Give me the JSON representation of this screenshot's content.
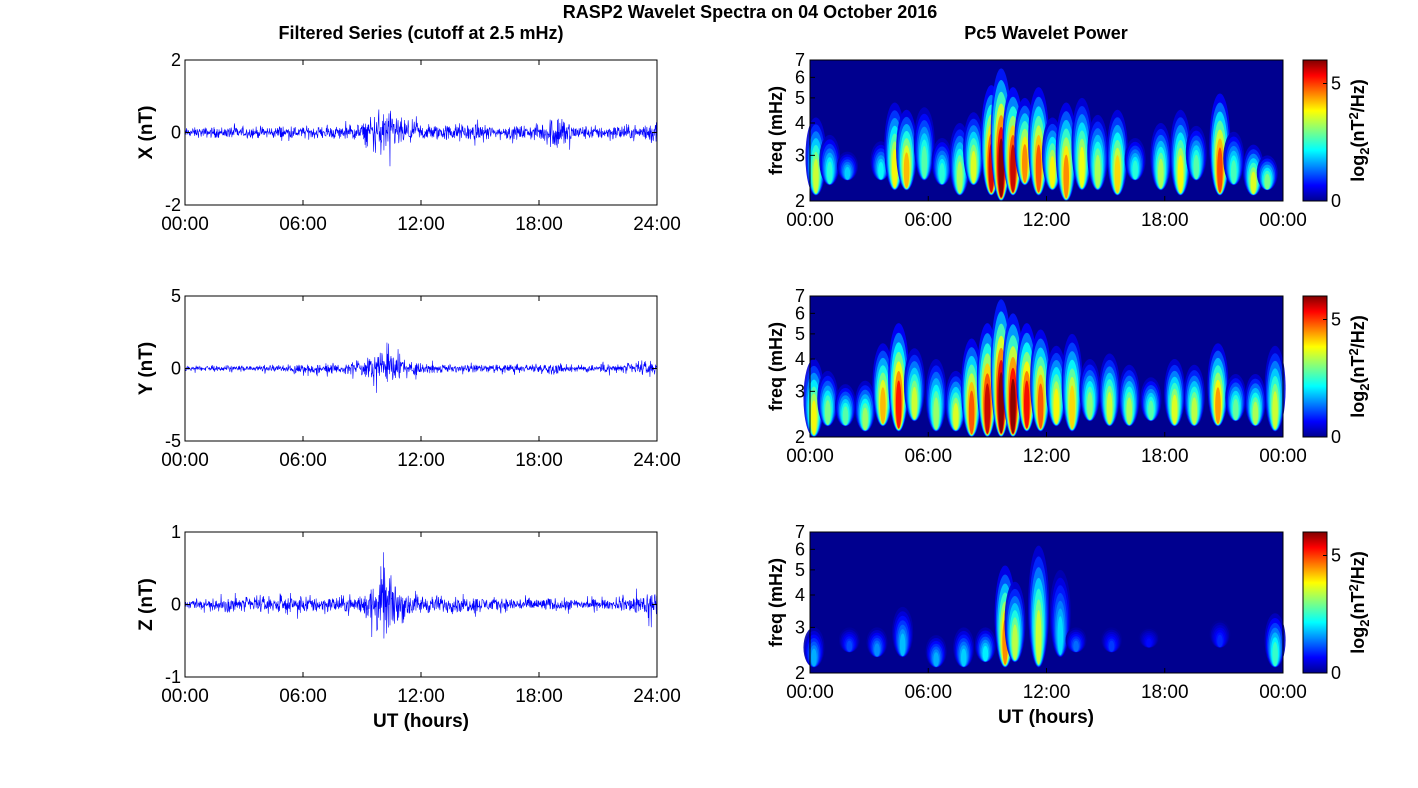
{
  "figure": {
    "title": "RASP2 Wavelet Spectra on 04 October 2016",
    "left_column_title": "Filtered Series (cutoff at 2.5 mHz)",
    "right_column_title": "Pc5 Wavelet Power",
    "x_label": "UT (hours)",
    "left_x_ticks": [
      "00:00",
      "06:00",
      "12:00",
      "18:00",
      "24:00"
    ],
    "right_x_ticks": [
      "00:00",
      "06:00",
      "12:00",
      "18:00",
      "00:00"
    ],
    "freq_label": "freq (mHz)",
    "freq_ticks": [
      "2",
      "3",
      "4",
      "5",
      "6",
      "7"
    ],
    "colorbar_ticks": [
      "0",
      "5"
    ],
    "trace_color": "#0000ff",
    "background_color": "#00008f"
  },
  "chart_data": [
    {
      "type": "line",
      "component": "X",
      "ylabel": "X (nT)",
      "ylim": [
        -2,
        2
      ],
      "y_ticks": [
        "2",
        "0",
        "-2"
      ],
      "xlim": [
        0,
        24
      ],
      "envelope": {
        "hours": [
          0,
          2,
          4,
          5,
          6,
          8,
          9,
          9.5,
          10,
          10.5,
          11,
          12,
          13,
          14,
          15,
          16,
          17,
          18,
          18.5,
          19,
          19.5,
          20,
          21,
          22,
          23,
          24
        ],
        "amplitude_nT": [
          0.2,
          0.25,
          0.25,
          0.3,
          0.25,
          0.3,
          0.4,
          0.8,
          1.1,
          0.9,
          0.6,
          0.4,
          0.35,
          0.4,
          0.35,
          0.3,
          0.3,
          0.35,
          0.6,
          1.0,
          0.5,
          0.3,
          0.3,
          0.35,
          0.3,
          0.6
        ]
      }
    },
    {
      "type": "line",
      "component": "Y",
      "ylabel": "Y (nT)",
      "ylim": [
        -5,
        5
      ],
      "y_ticks": [
        "5",
        "0",
        "-5"
      ],
      "xlim": [
        0,
        24
      ],
      "envelope": {
        "hours": [
          0,
          2,
          4,
          6,
          8,
          9,
          9.5,
          10,
          10.5,
          11,
          12,
          13,
          14,
          16,
          18,
          19,
          20,
          22,
          24
        ],
        "amplitude_nT": [
          0.3,
          0.3,
          0.35,
          0.5,
          0.6,
          0.8,
          1.4,
          2.0,
          1.6,
          1.2,
          0.6,
          0.5,
          0.4,
          0.4,
          0.5,
          0.6,
          0.4,
          0.5,
          0.9
        ]
      }
    },
    {
      "type": "line",
      "component": "Z",
      "ylabel": "Z (nT)",
      "ylim": [
        -1,
        1
      ],
      "y_ticks": [
        "1",
        "0",
        "-1"
      ],
      "xlim": [
        0,
        24
      ],
      "envelope": {
        "hours": [
          0,
          2,
          4,
          6,
          8,
          9,
          9.5,
          10,
          10.5,
          11,
          12,
          14,
          16,
          18,
          20,
          22,
          24
        ],
        "amplitude_nT": [
          0.08,
          0.15,
          0.18,
          0.2,
          0.18,
          0.25,
          0.45,
          0.75,
          0.6,
          0.4,
          0.2,
          0.18,
          0.15,
          0.15,
          0.12,
          0.1,
          0.35
        ]
      }
    },
    {
      "type": "heatmap",
      "component": "X",
      "ylabel": "freq (mHz)",
      "ylim": [
        2,
        7
      ],
      "y_scale": "log",
      "xlim": [
        0,
        24
      ],
      "colorbar_label": "log2(nT^2/Hz)",
      "clim": [
        0,
        6
      ],
      "colormap": "jet",
      "bursts": [
        {
          "t": 0.3,
          "f0": 2.1,
          "ftop": 4.2,
          "p": 3.5
        },
        {
          "t": 1.0,
          "f0": 2.3,
          "ftop": 3.6,
          "p": 2.5
        },
        {
          "t": 1.9,
          "f0": 2.4,
          "ftop": 3.1,
          "p": 2.0
        },
        {
          "t": 3.6,
          "f0": 2.4,
          "ftop": 3.4,
          "p": 2.3
        },
        {
          "t": 4.3,
          "f0": 2.2,
          "ftop": 4.8,
          "p": 3.8
        },
        {
          "t": 4.9,
          "f0": 2.2,
          "ftop": 4.5,
          "p": 4.2
        },
        {
          "t": 5.8,
          "f0": 2.4,
          "ftop": 4.6,
          "p": 2.8
        },
        {
          "t": 6.7,
          "f0": 2.3,
          "ftop": 3.5,
          "p": 2.5
        },
        {
          "t": 7.6,
          "f0": 2.1,
          "ftop": 4.0,
          "p": 3.3
        },
        {
          "t": 8.3,
          "f0": 2.3,
          "ftop": 4.4,
          "p": 3.6
        },
        {
          "t": 9.2,
          "f0": 2.1,
          "ftop": 5.6,
          "p": 5.5
        },
        {
          "t": 9.7,
          "f0": 2.0,
          "ftop": 6.5,
          "p": 6.2
        },
        {
          "t": 10.3,
          "f0": 2.1,
          "ftop": 5.5,
          "p": 5.6
        },
        {
          "t": 10.9,
          "f0": 2.3,
          "ftop": 5.0,
          "p": 4.5
        },
        {
          "t": 11.6,
          "f0": 2.1,
          "ftop": 5.5,
          "p": 4.8
        },
        {
          "t": 12.3,
          "f0": 2.2,
          "ftop": 4.2,
          "p": 3.8
        },
        {
          "t": 13.0,
          "f0": 2.0,
          "ftop": 4.8,
          "p": 4.5
        },
        {
          "t": 13.8,
          "f0": 2.2,
          "ftop": 5.0,
          "p": 3.7
        },
        {
          "t": 14.6,
          "f0": 2.2,
          "ftop": 4.3,
          "p": 3.3
        },
        {
          "t": 15.6,
          "f0": 2.1,
          "ftop": 4.5,
          "p": 4.0
        },
        {
          "t": 16.5,
          "f0": 2.4,
          "ftop": 3.5,
          "p": 2.5
        },
        {
          "t": 17.8,
          "f0": 2.2,
          "ftop": 4.0,
          "p": 3.3
        },
        {
          "t": 18.8,
          "f0": 2.1,
          "ftop": 4.5,
          "p": 3.8
        },
        {
          "t": 19.6,
          "f0": 2.4,
          "ftop": 3.9,
          "p": 2.8
        },
        {
          "t": 20.8,
          "f0": 2.1,
          "ftop": 5.2,
          "p": 4.9
        },
        {
          "t": 21.5,
          "f0": 2.3,
          "ftop": 3.7,
          "p": 2.7
        },
        {
          "t": 22.5,
          "f0": 2.1,
          "ftop": 3.3,
          "p": 3.6
        },
        {
          "t": 23.2,
          "f0": 2.2,
          "ftop": 3.0,
          "p": 3.0
        }
      ]
    },
    {
      "type": "heatmap",
      "component": "Y",
      "ylabel": "freq (mHz)",
      "ylim": [
        2,
        7
      ],
      "y_scale": "log",
      "xlim": [
        0,
        24
      ],
      "colorbar_label": "log2(nT^2/Hz)",
      "clim": [
        0,
        6
      ],
      "colormap": "jet",
      "bursts": [
        {
          "t": 0.2,
          "f0": 2.0,
          "ftop": 4.0,
          "p": 3.8
        },
        {
          "t": 0.9,
          "f0": 2.2,
          "ftop": 3.6,
          "p": 3.0
        },
        {
          "t": 1.8,
          "f0": 2.2,
          "ftop": 3.2,
          "p": 2.8
        },
        {
          "t": 2.8,
          "f0": 2.1,
          "ftop": 3.3,
          "p": 3.2
        },
        {
          "t": 3.7,
          "f0": 2.2,
          "ftop": 4.6,
          "p": 4.2
        },
        {
          "t": 4.5,
          "f0": 2.1,
          "ftop": 5.5,
          "p": 5.2
        },
        {
          "t": 5.3,
          "f0": 2.3,
          "ftop": 4.4,
          "p": 3.5
        },
        {
          "t": 6.4,
          "f0": 2.1,
          "ftop": 4.0,
          "p": 3.2
        },
        {
          "t": 7.4,
          "f0": 2.1,
          "ftop": 3.6,
          "p": 3.6
        },
        {
          "t": 8.2,
          "f0": 2.0,
          "ftop": 4.8,
          "p": 4.8
        },
        {
          "t": 9.0,
          "f0": 2.0,
          "ftop": 5.5,
          "p": 5.6
        },
        {
          "t": 9.7,
          "f0": 2.0,
          "ftop": 6.8,
          "p": 6.3
        },
        {
          "t": 10.3,
          "f0": 2.0,
          "ftop": 6.0,
          "p": 6.1
        },
        {
          "t": 11.0,
          "f0": 2.1,
          "ftop": 5.5,
          "p": 5.3
        },
        {
          "t": 11.7,
          "f0": 2.1,
          "ftop": 5.2,
          "p": 4.8
        },
        {
          "t": 12.5,
          "f0": 2.2,
          "ftop": 4.5,
          "p": 3.8
        },
        {
          "t": 13.3,
          "f0": 2.1,
          "ftop": 5.0,
          "p": 4.0
        },
        {
          "t": 14.2,
          "f0": 2.3,
          "ftop": 4.0,
          "p": 3.1
        },
        {
          "t": 15.2,
          "f0": 2.2,
          "ftop": 4.2,
          "p": 3.5
        },
        {
          "t": 16.2,
          "f0": 2.2,
          "ftop": 3.8,
          "p": 3.3
        },
        {
          "t": 17.3,
          "f0": 2.3,
          "ftop": 3.4,
          "p": 2.8
        },
        {
          "t": 18.5,
          "f0": 2.2,
          "ftop": 4.0,
          "p": 3.6
        },
        {
          "t": 19.5,
          "f0": 2.2,
          "ftop": 3.8,
          "p": 3.4
        },
        {
          "t": 20.7,
          "f0": 2.2,
          "ftop": 4.6,
          "p": 4.4
        },
        {
          "t": 21.6,
          "f0": 2.3,
          "ftop": 3.5,
          "p": 2.9
        },
        {
          "t": 22.6,
          "f0": 2.2,
          "ftop": 3.5,
          "p": 3.3
        },
        {
          "t": 23.6,
          "f0": 2.1,
          "ftop": 4.5,
          "p": 3.5
        }
      ]
    },
    {
      "type": "heatmap",
      "component": "Z",
      "ylabel": "freq (mHz)",
      "ylim": [
        2,
        7
      ],
      "y_scale": "log",
      "xlim": [
        0,
        24
      ],
      "colorbar_label": "log2(nT^2/Hz)",
      "clim": [
        0,
        6
      ],
      "colormap": "jet",
      "bursts": [
        {
          "t": 0.2,
          "f0": 2.1,
          "ftop": 3.0,
          "p": 1.8
        },
        {
          "t": 2.0,
          "f0": 2.4,
          "ftop": 3.0,
          "p": 1.2
        },
        {
          "t": 3.4,
          "f0": 2.3,
          "ftop": 3.0,
          "p": 1.6
        },
        {
          "t": 4.7,
          "f0": 2.3,
          "ftop": 3.6,
          "p": 1.9
        },
        {
          "t": 6.4,
          "f0": 2.1,
          "ftop": 2.8,
          "p": 1.8
        },
        {
          "t": 7.8,
          "f0": 2.1,
          "ftop": 3.0,
          "p": 2.0
        },
        {
          "t": 8.9,
          "f0": 2.2,
          "ftop": 3.0,
          "p": 2.2
        },
        {
          "t": 9.9,
          "f0": 2.1,
          "ftop": 5.2,
          "p": 4.5
        },
        {
          "t": 10.4,
          "f0": 2.2,
          "ftop": 4.5,
          "p": 3.4
        },
        {
          "t": 11.6,
          "f0": 2.1,
          "ftop": 6.2,
          "p": 3.5
        },
        {
          "t": 12.7,
          "f0": 2.3,
          "ftop": 5.0,
          "p": 2.1
        },
        {
          "t": 13.5,
          "f0": 2.4,
          "ftop": 3.0,
          "p": 1.4
        },
        {
          "t": 15.3,
          "f0": 2.4,
          "ftop": 3.0,
          "p": 1.1
        },
        {
          "t": 17.2,
          "f0": 2.5,
          "ftop": 3.0,
          "p": 0.8
        },
        {
          "t": 20.8,
          "f0": 2.5,
          "ftop": 3.2,
          "p": 1.0
        },
        {
          "t": 23.6,
          "f0": 2.1,
          "ftop": 3.4,
          "p": 2.6
        }
      ]
    }
  ]
}
